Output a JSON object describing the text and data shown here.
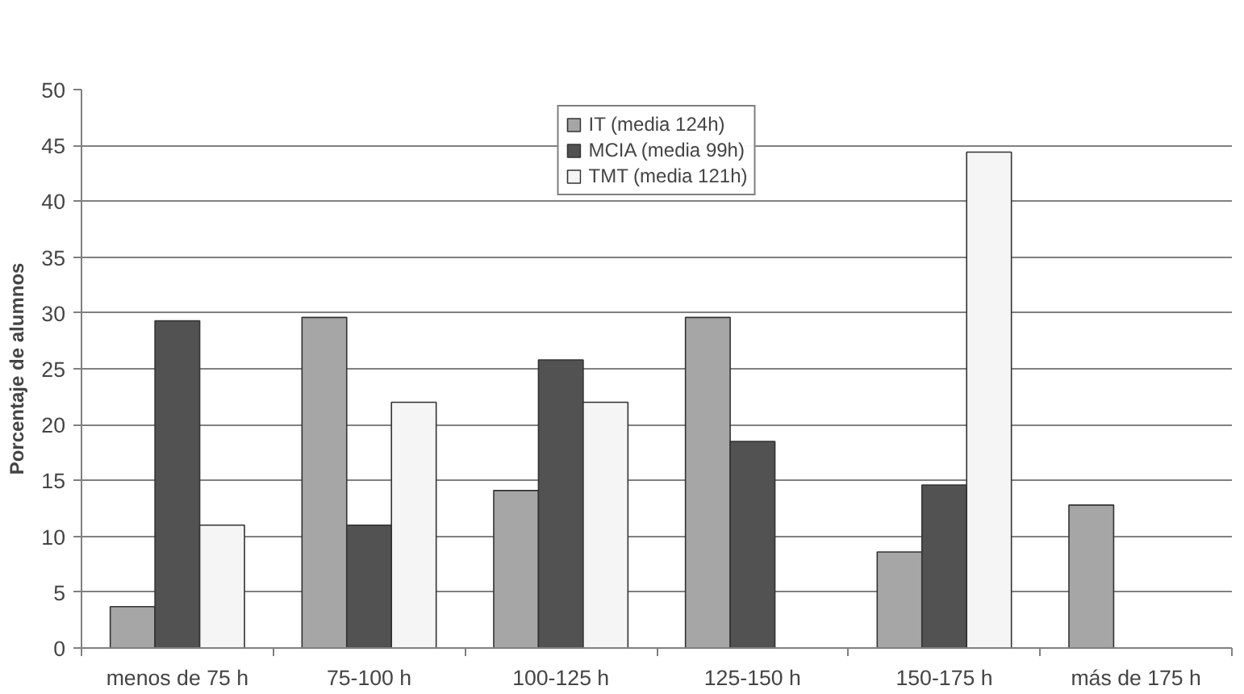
{
  "chart_data": {
    "type": "bar",
    "ylabel": "Porcentaje de alumnos",
    "categories": [
      "menos de 75 h",
      "75-100 h",
      "100-125 h",
      "125-150 h",
      "150-175 h",
      "más de 175 h"
    ],
    "series": [
      {
        "name": "IT (media 124h)",
        "color": "#a6a6a6",
        "values": [
          3.7,
          29.6,
          14.1,
          29.6,
          8.6,
          12.8
        ]
      },
      {
        "name": "MCIA (media 99h)",
        "color": "#525252",
        "values": [
          29.3,
          11,
          25.8,
          18.5,
          14.6,
          null
        ]
      },
      {
        "name": "TMT (media 121h)",
        "color": "#f5f5f5",
        "values": [
          11,
          22,
          22,
          null,
          44.4,
          null
        ]
      }
    ],
    "ylim": [
      0,
      50
    ],
    "yticks": [
      0,
      5,
      10,
      15,
      20,
      25,
      30,
      35,
      40,
      45,
      50
    ],
    "grid": "y",
    "legend": "top"
  }
}
